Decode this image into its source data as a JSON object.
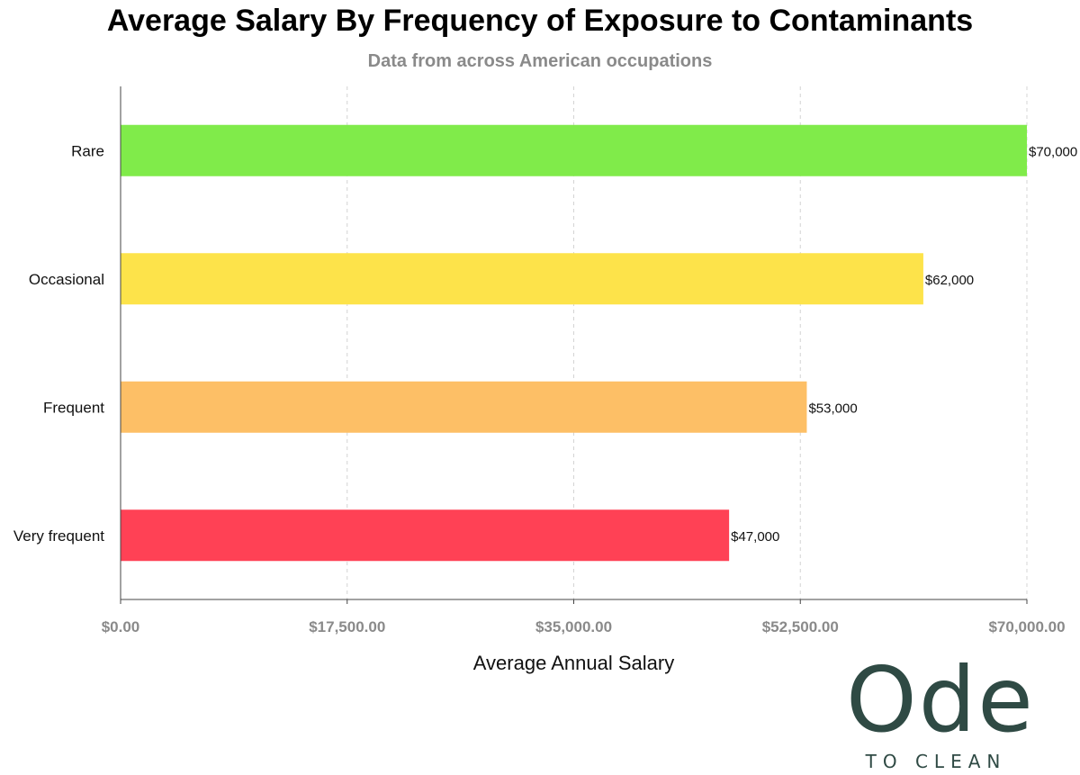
{
  "chart_data": {
    "type": "bar",
    "orientation": "horizontal",
    "title": "Average Salary By Frequency of Exposure to Contaminants",
    "subtitle": "Data from across American occupations",
    "xlabel": "Average Annual Salary",
    "ylabel": "",
    "categories": [
      "Rare",
      "Occasional",
      "Frequent",
      "Very frequent"
    ],
    "values": [
      70000,
      62000,
      53000,
      47000
    ],
    "value_labels": [
      "$70,000",
      "$62,000",
      "$53,000",
      "$47,000"
    ],
    "colors": [
      "#80eb4a",
      "#fde34a",
      "#fdbf66",
      "#ff4155"
    ],
    "xlim": [
      0,
      70000
    ],
    "xticks": [
      0,
      17500,
      35000,
      52500,
      70000
    ],
    "xtick_labels": [
      "$0.00",
      "$17,500.00",
      "$35,000.00",
      "$52,500.00",
      "$70,000.00"
    ],
    "grid": "vertical dashed",
    "legend": "none"
  },
  "logo": {
    "main": "Ode",
    "sub": "TO CLEAN"
  }
}
